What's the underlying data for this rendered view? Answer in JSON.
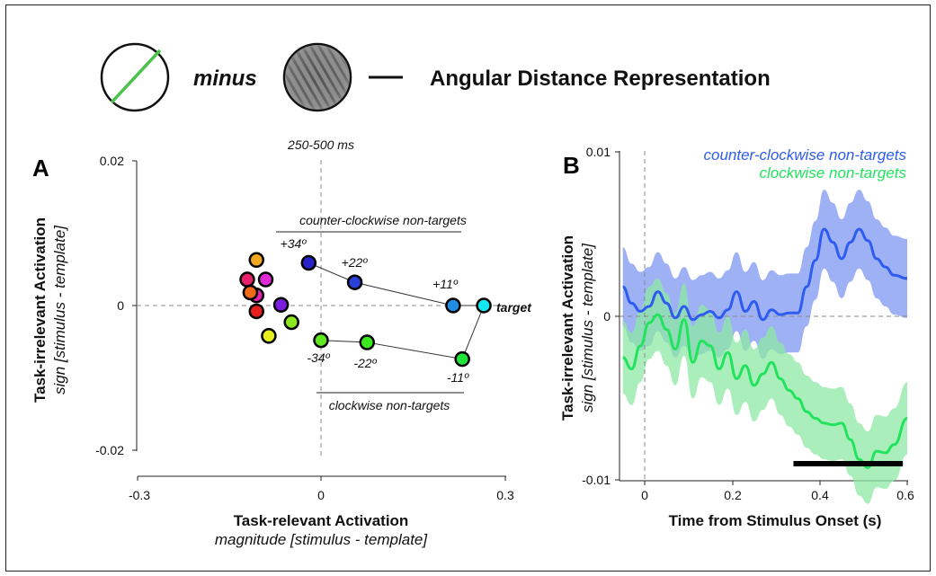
{
  "header": {
    "minus_label": "minus",
    "result_label": "Angular Distance Representation"
  },
  "colors": {
    "ccw": "#2f5cf0",
    "ccw_band": "#7f97f2",
    "cw": "#22e35e",
    "cw_band": "#8ee9a4",
    "stim_line": "#4cc24c"
  },
  "panel_a": {
    "letter": "A",
    "time_window": "250-500 ms",
    "ylabel": "Task-irrelevant Activation",
    "ylabel_sub": "sign [stimulus - template]",
    "xlabel": "Task-relevant Activation",
    "xlabel_sub": "magnitude [stimulus - template]",
    "yticks": [
      "0.02",
      "0",
      "-0.02"
    ],
    "xticks": [
      "-0.3",
      "0",
      "0.3"
    ],
    "ccw_group_label": "counter-clockwise non-targets",
    "cw_group_label": "clockwise non-targets",
    "target_label": "target",
    "angle_labels": [
      "+34º",
      "+22º",
      "+11º",
      "-34º",
      "-22º",
      "-11º"
    ]
  },
  "panel_b": {
    "letter": "B",
    "ylabel": "Task-irrelevant Activation",
    "ylabel_sub": "sign [stimulus - template]",
    "xlabel": "Time from Stimulus Onset (s)",
    "yticks": [
      "0.01",
      "0",
      "-0.01"
    ],
    "xticks": [
      "0",
      "0.2",
      "0.4",
      "0.6"
    ],
    "legend": [
      "counter-clockwise non-targets",
      "clockwise non-targets"
    ]
  },
  "chart_data": [
    {
      "type": "scatter",
      "title": "250-500 ms",
      "xlabel": "Task-relevant Activation",
      "ylabel": "Task-irrelevant Activation",
      "xlim": [
        -0.3,
        0.3
      ],
      "ylim": [
        -0.02,
        0.02
      ],
      "points": [
        {
          "label": "target",
          "x": 0.265,
          "y": 0.0,
          "color": "#11e8f0"
        },
        {
          "label": "+11º",
          "x": 0.215,
          "y": 0.0,
          "color": "#1f8ce6"
        },
        {
          "label": "+22º",
          "x": 0.055,
          "y": 0.0032,
          "color": "#2a3fd8"
        },
        {
          "label": "+34º",
          "x": -0.02,
          "y": 0.0059,
          "color": "#2a22c8"
        },
        {
          "label": "",
          "x": -0.065,
          "y": 0.0001,
          "color": "#7a1fe0"
        },
        {
          "label": "",
          "x": -0.09,
          "y": 0.0036,
          "color": "#e02ad8"
        },
        {
          "label": "",
          "x": -0.105,
          "y": 0.0014,
          "color": "#e81fb0"
        },
        {
          "label": "",
          "x": -0.12,
          "y": 0.0036,
          "color": "#e81f6a"
        },
        {
          "label": "",
          "x": -0.115,
          "y": 0.0018,
          "color": "#f06a1a"
        },
        {
          "label": "",
          "x": -0.105,
          "y": 0.0063,
          "color": "#f0a81f"
        },
        {
          "label": "",
          "x": -0.105,
          "y": -0.0008,
          "color": "#e81f1f"
        },
        {
          "label": "",
          "x": -0.085,
          "y": -0.0042,
          "color": "#e6f01f"
        },
        {
          "label": "",
          "x": -0.048,
          "y": -0.0023,
          "color": "#8ee81f"
        },
        {
          "label": "-34º",
          "x": 0.0,
          "y": -0.0048,
          "color": "#5ee81f"
        },
        {
          "label": "-22º",
          "x": 0.075,
          "y": -0.0051,
          "color": "#3be81f"
        },
        {
          "label": "-11º",
          "x": 0.23,
          "y": -0.0074,
          "color": "#22e33a"
        }
      ],
      "ccw_path": [
        "target",
        "+11º",
        "+22º",
        "+34º"
      ],
      "cw_path": [
        "target",
        "-11º",
        "-22º",
        "-34º"
      ]
    },
    {
      "type": "line",
      "xlabel": "Time from Stimulus Onset (s)",
      "ylabel": "Task-irrelevant Activation",
      "xlim": [
        -0.05,
        0.6
      ],
      "ylim": [
        -0.01,
        0.01
      ],
      "x": [
        -0.05,
        -0.03,
        -0.01,
        0.01,
        0.03,
        0.05,
        0.07,
        0.09,
        0.11,
        0.13,
        0.15,
        0.17,
        0.19,
        0.21,
        0.23,
        0.25,
        0.27,
        0.29,
        0.31,
        0.33,
        0.35,
        0.37,
        0.39,
        0.41,
        0.43,
        0.45,
        0.47,
        0.49,
        0.51,
        0.53,
        0.55,
        0.57,
        0.6
      ],
      "series": [
        {
          "name": "counter-clockwise non-targets",
          "values": [
            0.0018,
            0.0008,
            0.0003,
            0.0006,
            0.0015,
            0.0008,
            -0.0001,
            0.0006,
            -0.0002,
            0.0001,
            0.0003,
            -0.0001,
            0.0004,
            0.0015,
            0.0003,
            0.0009,
            -0.0002,
            0.0004,
            0.0001,
            0.0002,
            0.0002,
            0.0018,
            0.0034,
            0.0053,
            0.0045,
            0.0035,
            0.0045,
            0.0053,
            0.0046,
            0.0035,
            0.003,
            0.0025,
            0.0023
          ],
          "band": 0.0024
        },
        {
          "name": "clockwise non-targets",
          "values": [
            -0.0025,
            -0.0032,
            -0.0018,
            -0.0004,
            0.0001,
            -0.0008,
            -0.002,
            -0.0002,
            -0.0028,
            -0.0015,
            -0.0018,
            -0.0032,
            -0.0022,
            -0.0038,
            -0.003,
            -0.0042,
            -0.0035,
            -0.0028,
            -0.0038,
            -0.0045,
            -0.005,
            -0.0058,
            -0.0062,
            -0.0065,
            -0.0066,
            -0.0065,
            -0.0075,
            -0.0087,
            -0.0092,
            -0.0082,
            -0.0083,
            -0.0078,
            -0.0062
          ],
          "band": 0.0022
        }
      ],
      "significance_bar": [
        0.34,
        0.59
      ]
    }
  ]
}
